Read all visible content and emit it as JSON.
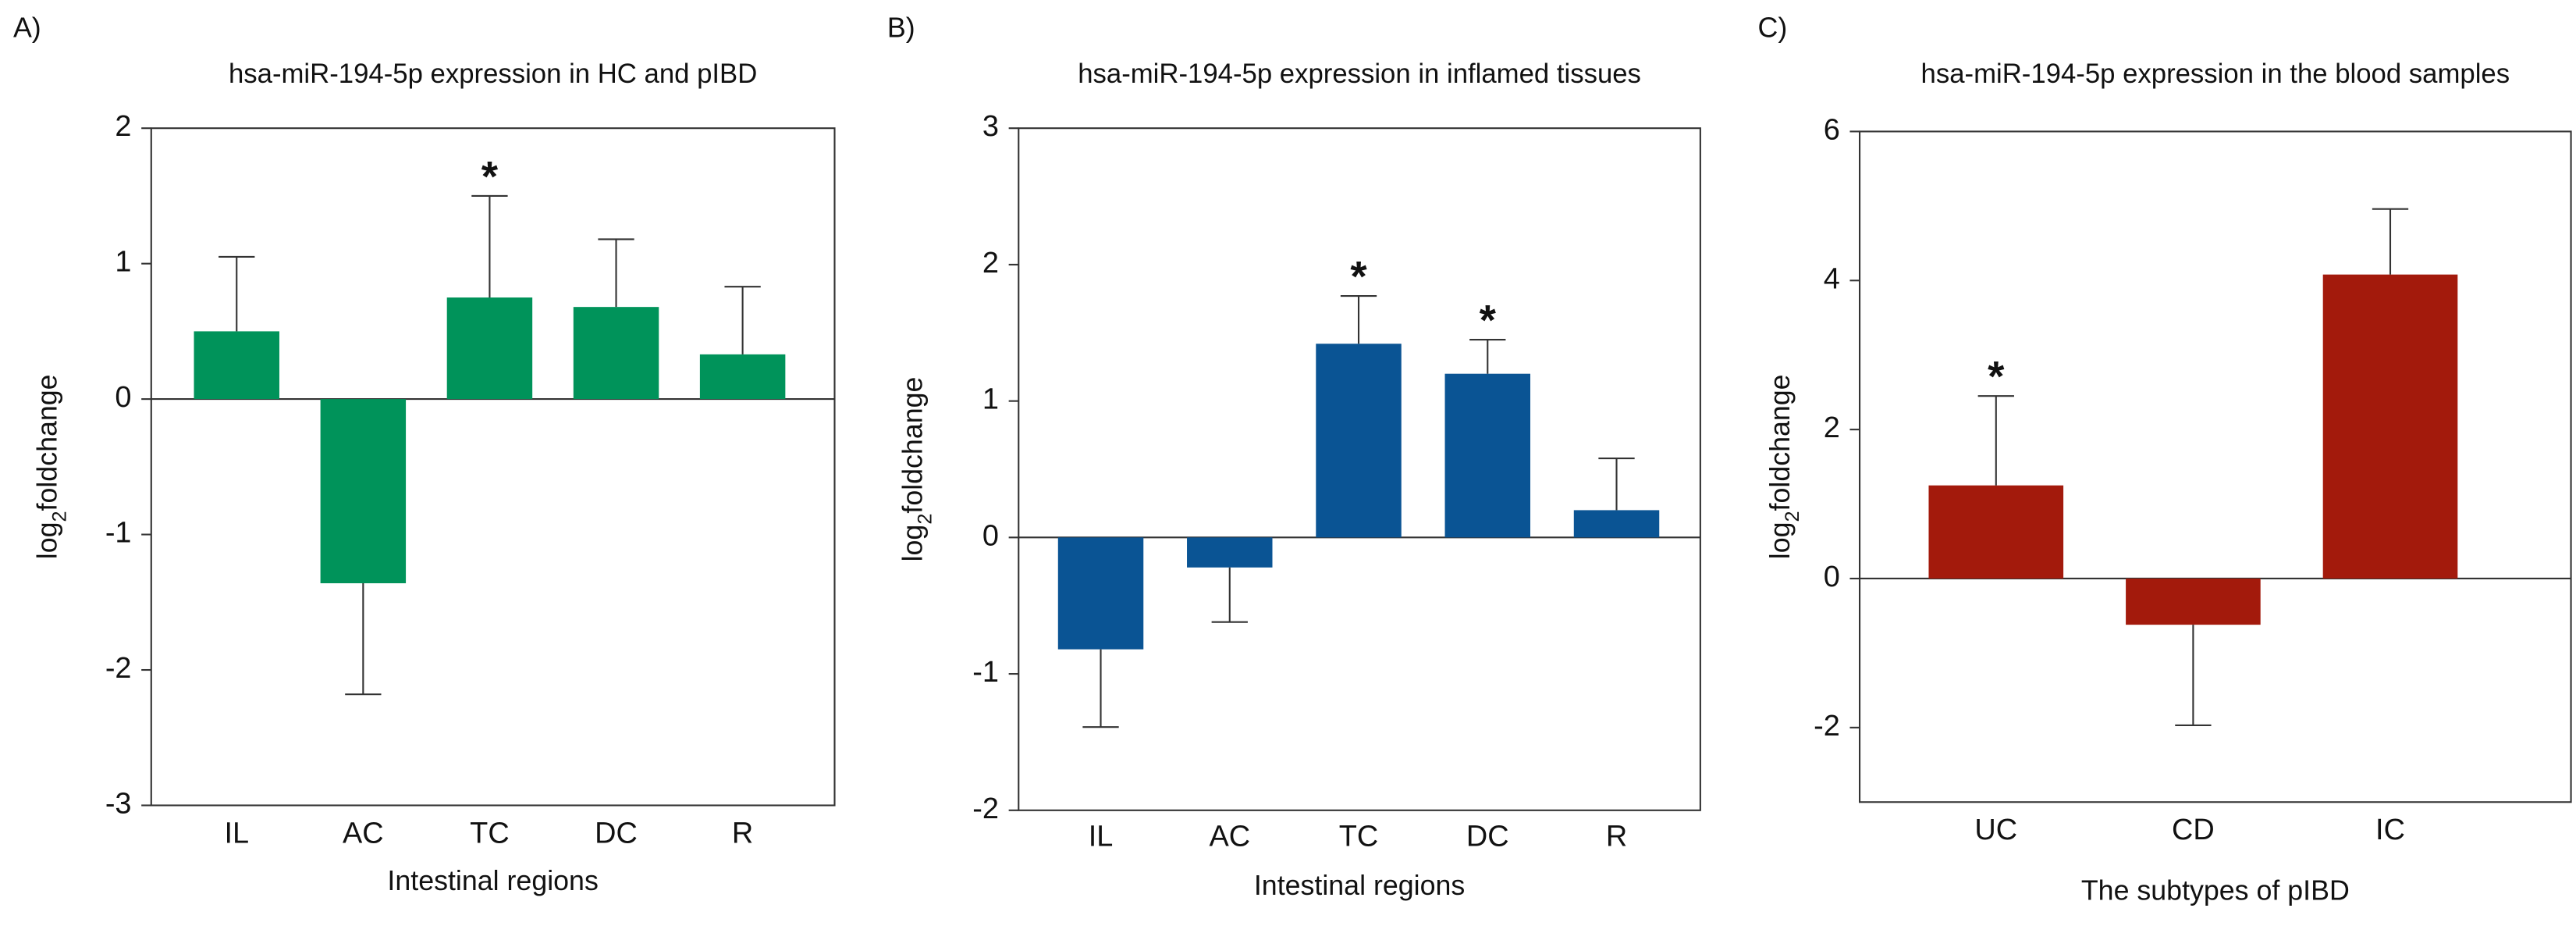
{
  "chart_data": [
    {
      "type": "bar",
      "panel": "A)",
      "title": "hsa-miR-194-5p expression in HC and pIBD",
      "x_label": "Intestinal regions",
      "y_label_parts": [
        "log",
        "2",
        "foldchange"
      ],
      "categories": [
        "IL",
        "AC",
        "TC",
        "DC",
        "R"
      ],
      "values": [
        0.5,
        -1.36,
        0.75,
        0.68,
        0.33
      ],
      "errors": [
        0.55,
        0.82,
        0.75,
        0.5,
        0.5
      ],
      "annotations": [
        null,
        null,
        "*",
        null,
        null
      ],
      "color": "#00935a",
      "ylim": [
        -3,
        2
      ],
      "yticks": [
        -3,
        -2,
        -1,
        0,
        1,
        2
      ]
    },
    {
      "type": "bar",
      "panel": "B)",
      "title": "hsa-miR-194-5p expression in inflamed tissues",
      "x_label": "Intestinal regions",
      "y_label_parts": [
        "log",
        "2",
        "foldchange"
      ],
      "categories": [
        "IL",
        "AC",
        "TC",
        "DC",
        "R"
      ],
      "values": [
        -0.82,
        -0.22,
        1.42,
        1.2,
        0.2
      ],
      "errors": [
        0.57,
        0.4,
        0.35,
        0.25,
        0.38
      ],
      "annotations": [
        null,
        null,
        "*",
        "*",
        null
      ],
      "color": "#0a5494",
      "ylim": [
        -2,
        3
      ],
      "yticks": [
        -2,
        -1,
        0,
        1,
        2,
        3
      ]
    },
    {
      "type": "bar",
      "panel": "C)",
      "title": "hsa-miR-194-5p expression in the blood samples",
      "x_label": "The subtypes of pIBD",
      "y_label_parts": [
        "log",
        "2",
        "foldchange"
      ],
      "categories": [
        "UC",
        "CD",
        "IC"
      ],
      "values": [
        1.25,
        -0.62,
        4.08
      ],
      "errors": [
        1.2,
        1.35,
        0.88
      ],
      "annotations": [
        "*",
        null,
        null
      ],
      "color": "#a31a0c",
      "ylim": [
        -3,
        6
      ],
      "yticks": [
        -2,
        0,
        2,
        4,
        6
      ]
    }
  ]
}
